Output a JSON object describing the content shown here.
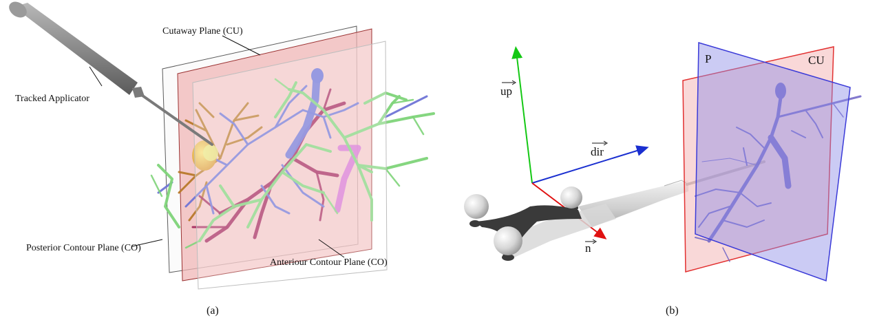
{
  "panel_a": {
    "caption": "(a)",
    "labels": {
      "cutaway_plane": "Cutaway Plane (CU)",
      "tracked_applicator": "Tracked Applicator",
      "posterior_plane": "Posterior Contour Plane (CO)",
      "anterior_plane": "Anteriour Contour Plane (CO)"
    }
  },
  "panel_b": {
    "caption": "(b)",
    "vectors": {
      "up": "up",
      "dir": "dir",
      "n": "n"
    },
    "plane_labels": {
      "p": "P",
      "cu": "CU"
    }
  },
  "colors": {
    "vessel_green": "#7fd47a",
    "vessel_blue": "#6f74d6",
    "vessel_magenta": "#a3245a",
    "vessel_brown": "#b97a2a",
    "plane_red": "#e23030",
    "plane_blue": "#3a3ad8",
    "axis_green": "#14c814",
    "axis_blue": "#1a2fd0",
    "axis_red": "#e01010",
    "applicator_gray": "#8a8a8a"
  }
}
